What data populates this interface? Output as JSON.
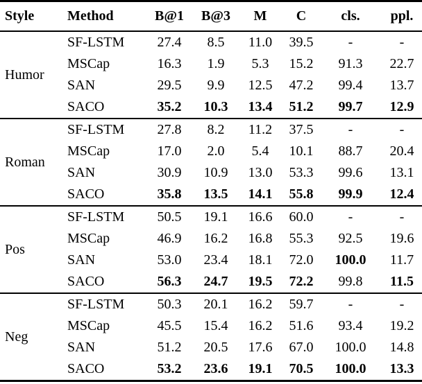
{
  "table": {
    "columns": [
      "Style",
      "Method",
      "B@1",
      "B@3",
      "M",
      "C",
      "cls.",
      "ppl."
    ],
    "sections": [
      {
        "style": "Humor",
        "rows": [
          {
            "method": "SF-LSTM",
            "values": [
              "27.4",
              "8.5",
              "11.0",
              "39.5",
              "-",
              "-"
            ],
            "bold": [
              false,
              false,
              false,
              false,
              false,
              false
            ]
          },
          {
            "method": "MSCap",
            "values": [
              "16.3",
              "1.9",
              "5.3",
              "15.2",
              "91.3",
              "22.7"
            ],
            "bold": [
              false,
              false,
              false,
              false,
              false,
              false
            ]
          },
          {
            "method": "SAN",
            "values": [
              "29.5",
              "9.9",
              "12.5",
              "47.2",
              "99.4",
              "13.7"
            ],
            "bold": [
              false,
              false,
              false,
              false,
              false,
              false
            ]
          },
          {
            "method": "SACO",
            "values": [
              "35.2",
              "10.3",
              "13.4",
              "51.2",
              "99.7",
              "12.9"
            ],
            "bold": [
              true,
              true,
              true,
              true,
              true,
              true
            ]
          }
        ]
      },
      {
        "style": "Roman",
        "rows": [
          {
            "method": "SF-LSTM",
            "values": [
              "27.8",
              "8.2",
              "11.2",
              "37.5",
              "-",
              "-"
            ],
            "bold": [
              false,
              false,
              false,
              false,
              false,
              false
            ]
          },
          {
            "method": "MSCap",
            "values": [
              "17.0",
              "2.0",
              "5.4",
              "10.1",
              "88.7",
              "20.4"
            ],
            "bold": [
              false,
              false,
              false,
              false,
              false,
              false
            ]
          },
          {
            "method": "SAN",
            "values": [
              "30.9",
              "10.9",
              "13.0",
              "53.3",
              "99.6",
              "13.1"
            ],
            "bold": [
              false,
              false,
              false,
              false,
              false,
              false
            ]
          },
          {
            "method": "SACO",
            "values": [
              "35.8",
              "13.5",
              "14.1",
              "55.8",
              "99.9",
              "12.4"
            ],
            "bold": [
              true,
              true,
              true,
              true,
              true,
              true
            ]
          }
        ]
      },
      {
        "style": "Pos",
        "rows": [
          {
            "method": "SF-LSTM",
            "values": [
              "50.5",
              "19.1",
              "16.6",
              "60.0",
              "-",
              "-"
            ],
            "bold": [
              false,
              false,
              false,
              false,
              false,
              false
            ]
          },
          {
            "method": "MSCap",
            "values": [
              "46.9",
              "16.2",
              "16.8",
              "55.3",
              "92.5",
              "19.6"
            ],
            "bold": [
              false,
              false,
              false,
              false,
              false,
              false
            ]
          },
          {
            "method": "SAN",
            "values": [
              "53.0",
              "23.4",
              "18.1",
              "72.0",
              "100.0",
              "11.7"
            ],
            "bold": [
              false,
              false,
              false,
              false,
              true,
              false
            ]
          },
          {
            "method": "SACO",
            "values": [
              "56.3",
              "24.7",
              "19.5",
              "72.2",
              "99.8",
              "11.5"
            ],
            "bold": [
              true,
              true,
              true,
              true,
              false,
              true
            ]
          }
        ]
      },
      {
        "style": "Neg",
        "rows": [
          {
            "method": "SF-LSTM",
            "values": [
              "50.3",
              "20.1",
              "16.2",
              "59.7",
              "-",
              "-"
            ],
            "bold": [
              false,
              false,
              false,
              false,
              false,
              false
            ]
          },
          {
            "method": "MSCap",
            "values": [
              "45.5",
              "15.4",
              "16.2",
              "51.6",
              "93.4",
              "19.2"
            ],
            "bold": [
              false,
              false,
              false,
              false,
              false,
              false
            ]
          },
          {
            "method": "SAN",
            "values": [
              "51.2",
              "20.5",
              "17.6",
              "67.0",
              "100.0",
              "14.8"
            ],
            "bold": [
              false,
              false,
              false,
              false,
              false,
              false
            ]
          },
          {
            "method": "SACO",
            "values": [
              "53.2",
              "23.6",
              "19.1",
              "70.5",
              "100.0",
              "13.3"
            ],
            "bold": [
              true,
              true,
              true,
              true,
              true,
              true
            ]
          }
        ]
      }
    ]
  }
}
